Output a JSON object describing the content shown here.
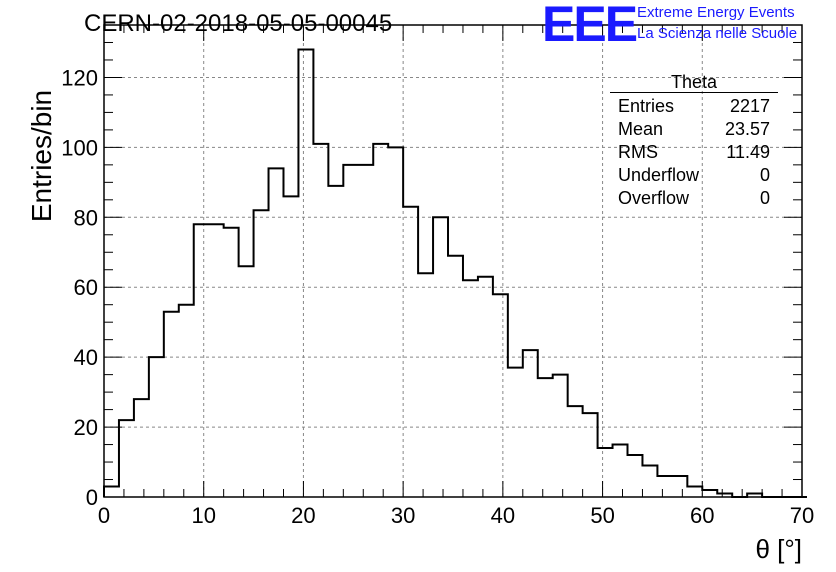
{
  "header": {
    "title": "CERN-02-2018-05-05-00045",
    "logo_text": "EEE",
    "logo_line1": "Extreme Energy Events",
    "logo_line2": "La Scienza nelle Scuole"
  },
  "stats": {
    "title": "Theta",
    "rows": [
      {
        "label": "Entries",
        "value": "2217"
      },
      {
        "label": "Mean",
        "value": "23.57"
      },
      {
        "label": "RMS",
        "value": "11.49"
      },
      {
        "label": "Underflow",
        "value": "0"
      },
      {
        "label": "Overflow",
        "value": "0"
      }
    ]
  },
  "colors": {
    "logo": "#1a1aff",
    "grid": "#888888",
    "line": "#000000"
  },
  "chart_data": {
    "type": "histogram",
    "xlabel": "θ [°]",
    "ylabel": "Entries/bin",
    "xlim": [
      0,
      70
    ],
    "ylim": [
      0,
      135
    ],
    "bin_width": 1.5,
    "x_ticks": [
      0,
      10,
      20,
      30,
      40,
      50,
      60,
      70
    ],
    "y_ticks": [
      0,
      20,
      40,
      60,
      80,
      100,
      120
    ],
    "grid": true,
    "legend": "top-right",
    "values": [
      3,
      22,
      28,
      40,
      53,
      55,
      78,
      78,
      77,
      66,
      82,
      94,
      86,
      128,
      101,
      89,
      95,
      95,
      101,
      100,
      83,
      64,
      80,
      69,
      62,
      63,
      58,
      37,
      42,
      34,
      35,
      26,
      24,
      14,
      15,
      12,
      9,
      6,
      6,
      3,
      2,
      1,
      0,
      1,
      0,
      0,
      0
    ]
  }
}
